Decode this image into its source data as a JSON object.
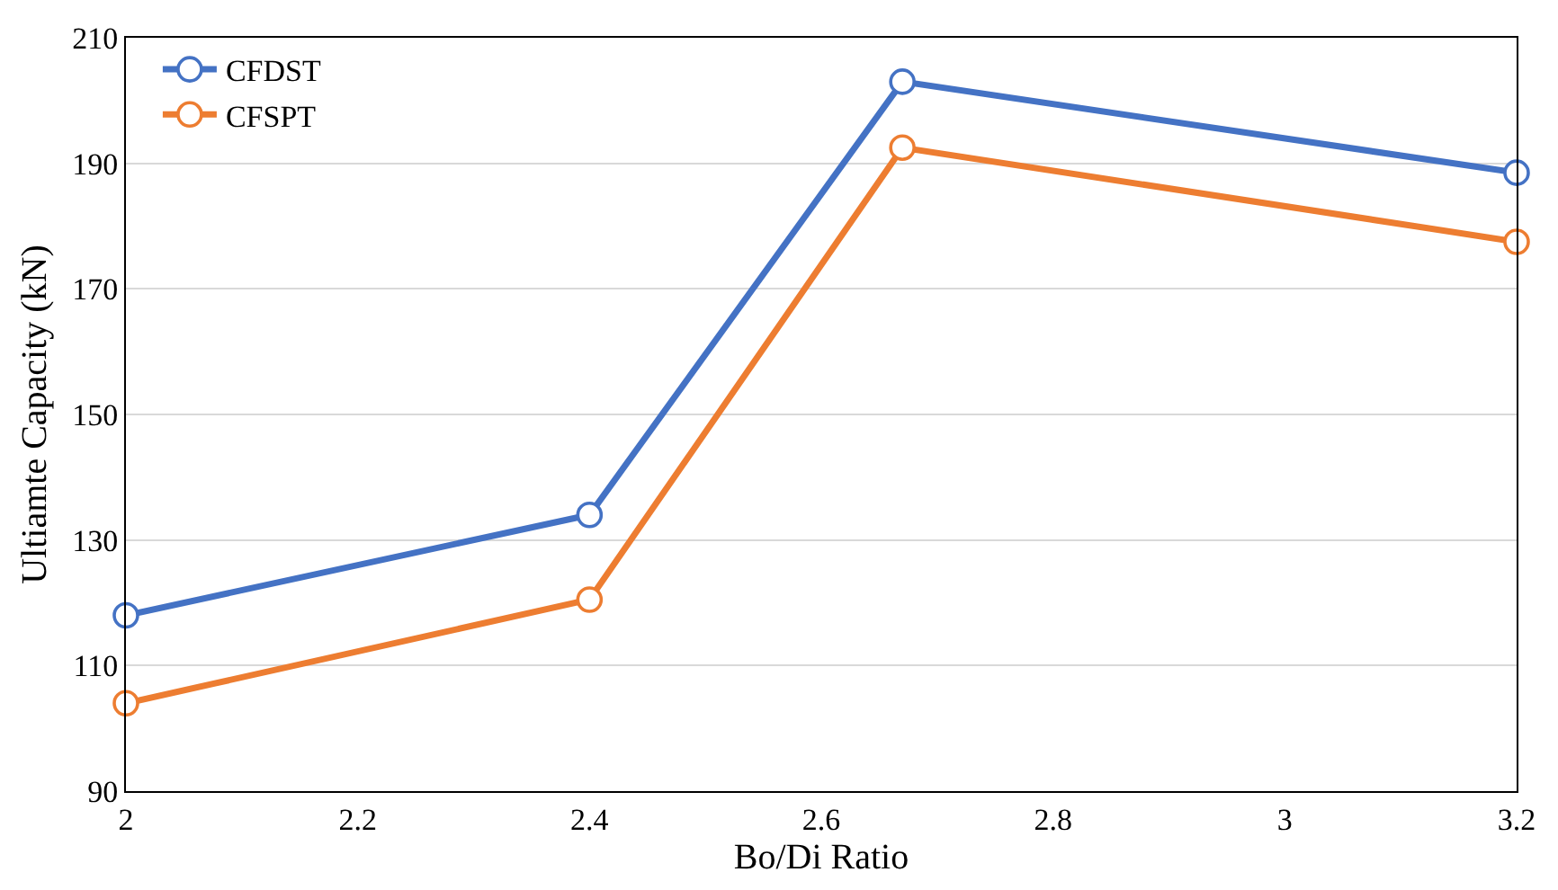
{
  "chart_data": {
    "type": "line",
    "xlabel": "Bo/Di Ratio",
    "ylabel": "Ultiamte Capacity (kN)",
    "x": [
      2,
      2.4,
      2.67,
      3.2
    ],
    "series": [
      {
        "name": "CFDST",
        "color": "#4472c4",
        "values": [
          118,
          134,
          203,
          188.5
        ]
      },
      {
        "name": "CFSPT",
        "color": "#ed7d31",
        "values": [
          104,
          120.5,
          192.5,
          177.5
        ]
      }
    ],
    "xlim": [
      2,
      3.2
    ],
    "xticks": [
      2,
      2.2,
      2.4,
      2.6,
      2.8,
      3,
      3.2
    ],
    "ylim": [
      90,
      210
    ],
    "yticks": [
      90,
      110,
      130,
      150,
      170,
      190,
      210
    ],
    "grid": "y",
    "legend": "top left",
    "marker": "circle",
    "line_style": "solid"
  }
}
